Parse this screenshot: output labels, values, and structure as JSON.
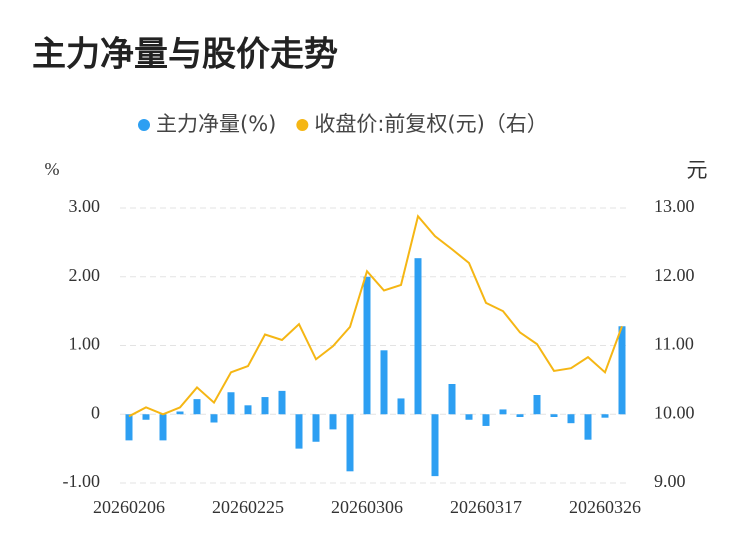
{
  "chart_data": {
    "type": "bar_line",
    "title": "主力净量与股价走势",
    "y_label": "%",
    "y2_label": "元",
    "categories": [
      "20260206",
      null,
      null,
      null,
      null,
      null,
      null,
      "20260225",
      null,
      null,
      null,
      null,
      null,
      null,
      "20260306",
      null,
      null,
      null,
      null,
      null,
      null,
      "20260317",
      null,
      null,
      null,
      null,
      null,
      null,
      "20260326",
      null
    ],
    "series": [
      {
        "name": "主力净量(%)",
        "type": "bar",
        "color": "#2d9ff2",
        "axis": "y",
        "values": [
          -0.38,
          -0.08,
          -0.38,
          0.04,
          0.22,
          -0.12,
          0.32,
          0.13,
          0.25,
          0.34,
          -0.5,
          -0.4,
          -0.22,
          -0.83,
          2.0,
          0.93,
          0.23,
          2.27,
          -0.9,
          0.44,
          -0.08,
          -0.17,
          0.07,
          -0.04,
          0.28,
          -0.04,
          -0.13,
          -0.37,
          -0.05,
          1.28
        ]
      },
      {
        "name": "收盘价:前复权(元)（右）",
        "type": "line",
        "color": "#f5b614",
        "axis": "y2",
        "values": [
          9.97,
          10.1,
          10.0,
          10.1,
          10.39,
          10.17,
          10.61,
          10.7,
          11.16,
          11.08,
          11.31,
          10.8,
          10.99,
          11.27,
          12.08,
          11.8,
          11.88,
          12.88,
          12.59,
          12.4,
          12.2,
          11.62,
          11.5,
          11.19,
          11.02,
          10.63,
          10.67,
          10.83,
          10.61,
          11.28
        ]
      }
    ],
    "ylim": [
      -1,
      3
    ],
    "yticks": [
      {
        "value": -1,
        "label": "-1.00"
      },
      0,
      {
        "value": 1,
        "label": "1.00"
      },
      {
        "value": 2,
        "label": "2.00"
      },
      {
        "value": 3,
        "label": "3.00"
      }
    ],
    "y2lim": [
      9,
      13
    ],
    "y2ticks": [
      {
        "value": 9,
        "label": "9.00"
      },
      {
        "value": 10,
        "label": "10.00"
      },
      {
        "value": 11,
        "label": "11.00"
      },
      {
        "value": 12,
        "label": "12.00"
      },
      {
        "value": 13,
        "label": "13.00"
      }
    ],
    "grid": true
  }
}
